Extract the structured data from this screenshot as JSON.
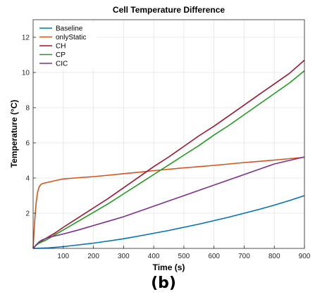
{
  "chart_data": {
    "type": "line",
    "title": "Cell Temperature Difference",
    "xlabel": "Time (s)",
    "ylabel": "Temperature (°C)",
    "xlim": [
      0,
      900
    ],
    "ylim": [
      0,
      13
    ],
    "xticks": [
      100,
      200,
      300,
      400,
      500,
      600,
      700,
      800,
      900
    ],
    "yticks": [
      2,
      4,
      6,
      8,
      10,
      12
    ],
    "grid": true,
    "legend_position": "top-left",
    "series": [
      {
        "name": "Baseline",
        "color": "#0072BD",
        "x": [
          0,
          50,
          100,
          150,
          200,
          250,
          300,
          350,
          400,
          450,
          500,
          550,
          600,
          650,
          700,
          750,
          800,
          850,
          900
        ],
        "y": [
          0,
          0.03,
          0.1,
          0.2,
          0.3,
          0.42,
          0.55,
          0.7,
          0.86,
          1.02,
          1.2,
          1.38,
          1.58,
          1.78,
          2.0,
          2.22,
          2.46,
          2.72,
          3.0
        ]
      },
      {
        "name": "onlyStatic",
        "color": "#D95319",
        "x": [
          0,
          5,
          10,
          15,
          20,
          25,
          30,
          40,
          60,
          80,
          100,
          150,
          200,
          250,
          300,
          350,
          400,
          450,
          500,
          550,
          600,
          650,
          700,
          750,
          800,
          850,
          900
        ],
        "y": [
          0,
          1.5,
          2.6,
          3.2,
          3.5,
          3.62,
          3.68,
          3.72,
          3.8,
          3.88,
          3.95,
          4.02,
          4.08,
          4.16,
          4.25,
          4.33,
          4.42,
          4.5,
          4.58,
          4.65,
          4.72,
          4.8,
          4.88,
          4.95,
          5.02,
          5.1,
          5.18
        ]
      },
      {
        "name": "CH",
        "color": "#A2142F",
        "x": [
          0,
          10,
          20,
          30,
          40,
          50,
          75,
          100,
          150,
          200,
          250,
          300,
          350,
          400,
          450,
          500,
          550,
          600,
          650,
          700,
          750,
          800,
          850,
          900
        ],
        "y": [
          0,
          0.2,
          0.35,
          0.45,
          0.55,
          0.65,
          0.9,
          1.2,
          1.75,
          2.3,
          2.85,
          3.45,
          4.05,
          4.65,
          5.2,
          5.8,
          6.4,
          6.95,
          7.55,
          8.15,
          8.75,
          9.35,
          9.95,
          10.7
        ]
      },
      {
        "name": "CP",
        "color": "#1D9E1D",
        "x": [
          0,
          10,
          20,
          30,
          40,
          50,
          75,
          100,
          150,
          200,
          250,
          300,
          350,
          400,
          450,
          500,
          550,
          600,
          650,
          700,
          750,
          800,
          850,
          900
        ],
        "y": [
          0,
          0.18,
          0.3,
          0.38,
          0.45,
          0.55,
          0.8,
          1.05,
          1.55,
          2.05,
          2.55,
          3.1,
          3.65,
          4.2,
          4.75,
          5.3,
          5.85,
          6.45,
          7.0,
          7.6,
          8.2,
          8.8,
          9.4,
          10.1
        ]
      },
      {
        "name": "CIC",
        "color": "#7E2F8E",
        "x": [
          0,
          10,
          20,
          30,
          40,
          50,
          75,
          100,
          150,
          200,
          250,
          300,
          350,
          400,
          450,
          500,
          550,
          600,
          650,
          700,
          750,
          800,
          850,
          900
        ],
        "y": [
          0,
          0.2,
          0.38,
          0.48,
          0.55,
          0.62,
          0.72,
          0.82,
          1.05,
          1.3,
          1.55,
          1.8,
          2.1,
          2.4,
          2.7,
          3.0,
          3.3,
          3.6,
          3.9,
          4.2,
          4.5,
          4.8,
          5.0,
          5.2
        ]
      }
    ]
  },
  "panel_label": "(b)"
}
